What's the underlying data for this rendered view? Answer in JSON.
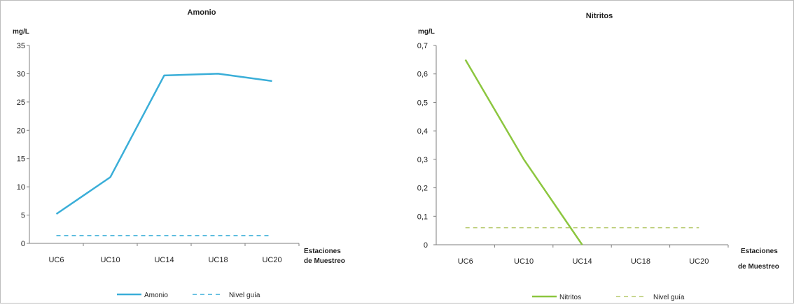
{
  "chart_data": [
    {
      "type": "line",
      "title": "Amonio",
      "ylabel": "mg/L",
      "xlabel": "Estaciones de Muestreo",
      "xlabel_lines": [
        "Estaciones",
        "de Muestreo"
      ],
      "categories": [
        "UC6",
        "UC10",
        "UC14",
        "UC18",
        "UC20"
      ],
      "ylim": [
        0,
        35
      ],
      "yticks": [
        0,
        5,
        10,
        15,
        20,
        25,
        30,
        35
      ],
      "ytick_labels": [
        "0",
        "5",
        "10",
        "15",
        "20",
        "25",
        "30",
        "35"
      ],
      "grid": false,
      "legend": "bottom",
      "series": [
        {
          "name": "Amonio",
          "values": [
            5.2,
            11.7,
            29.7,
            30.0,
            28.7
          ],
          "style": "solid",
          "color": "#3aaed8"
        },
        {
          "name": "Nivel guía",
          "values": [
            1.37,
            1.37,
            1.37,
            1.37,
            1.37
          ],
          "style": "dashed",
          "color": "#3aaed8"
        }
      ]
    },
    {
      "type": "line",
      "title": "Nitritos",
      "ylabel": "mg/L",
      "xlabel": "Estaciones de Muestreo",
      "xlabel_lines": [
        "Estaciones",
        "de Muestreo"
      ],
      "categories": [
        "UC6",
        "UC10",
        "UC14",
        "UC18",
        "UC20"
      ],
      "ylim": [
        0,
        0.7
      ],
      "yticks": [
        0,
        0.1,
        0.2,
        0.3,
        0.4,
        0.5,
        0.6,
        0.7
      ],
      "ytick_labels": [
        "0",
        "0,1",
        "0,2",
        "0,3",
        "0,4",
        "0,5",
        "0,6",
        "0,7"
      ],
      "grid": false,
      "legend": "bottom",
      "series": [
        {
          "name": "Nitritos",
          "values": [
            0.65,
            0.3,
            0.0,
            null,
            null
          ],
          "style": "solid",
          "color": "#8cc63f"
        },
        {
          "name": "Nivel guía",
          "values": [
            0.06,
            0.06,
            0.06,
            0.06,
            0.06
          ],
          "style": "dashed",
          "color": "#b5c96b"
        }
      ]
    }
  ]
}
